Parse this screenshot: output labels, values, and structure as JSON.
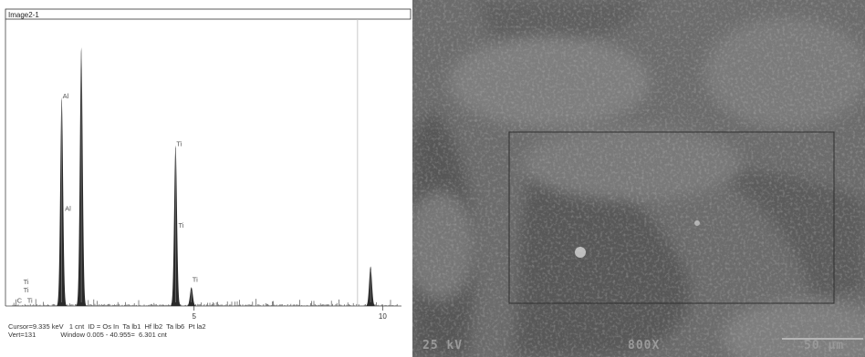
{
  "spectrum": {
    "title": "Image2-1",
    "status_line1": "Cursor=9.335 keV   1 cnt  ID = Os In  Ta lb1  Hf lb2  Ta lb6  Pt la2",
    "status_line2": "Vert=131             Window 0.005 - 40.955=  6.301 cnt"
  },
  "chart_data": {
    "type": "line",
    "title": "Image2-1",
    "xlabel": "",
    "ylabel": "",
    "xlim": [
      0,
      10.5
    ],
    "xticks": [
      5,
      10
    ],
    "cursor_x": 9.335,
    "series": [
      {
        "values_note": "",
        "peaks": [
          {
            "x": 1.49,
            "y": 100
          },
          {
            "x": 2.01,
            "y": 124
          },
          {
            "x": 4.51,
            "y": 77
          },
          {
            "x": 4.93,
            "y": 9
          },
          {
            "x": 9.68,
            "y": 19
          }
        ]
      }
    ],
    "annotations": [
      {
        "label": "Al",
        "x": 1.49,
        "y": 100
      },
      {
        "label": "Al",
        "x": 1.55,
        "y": 46
      },
      {
        "label": "Ti",
        "x": 4.51,
        "y": 77
      },
      {
        "label": "Ti",
        "x": 4.56,
        "y": 38
      },
      {
        "label": "Ti",
        "x": 4.93,
        "y": 12
      },
      {
        "label": "Ti",
        "x": 0.45,
        "y": 11
      },
      {
        "label": "Ti",
        "x": 0.45,
        "y": 7
      },
      {
        "label": "C",
        "x": 0.28,
        "y": 2
      },
      {
        "label": "Ti",
        "x": 0.55,
        "y": 2
      }
    ],
    "tick_labels": [
      "5",
      "10"
    ]
  },
  "sem": {
    "voltage": "25 kV",
    "magnification": "800X",
    "scale_bar": "50 µm"
  }
}
